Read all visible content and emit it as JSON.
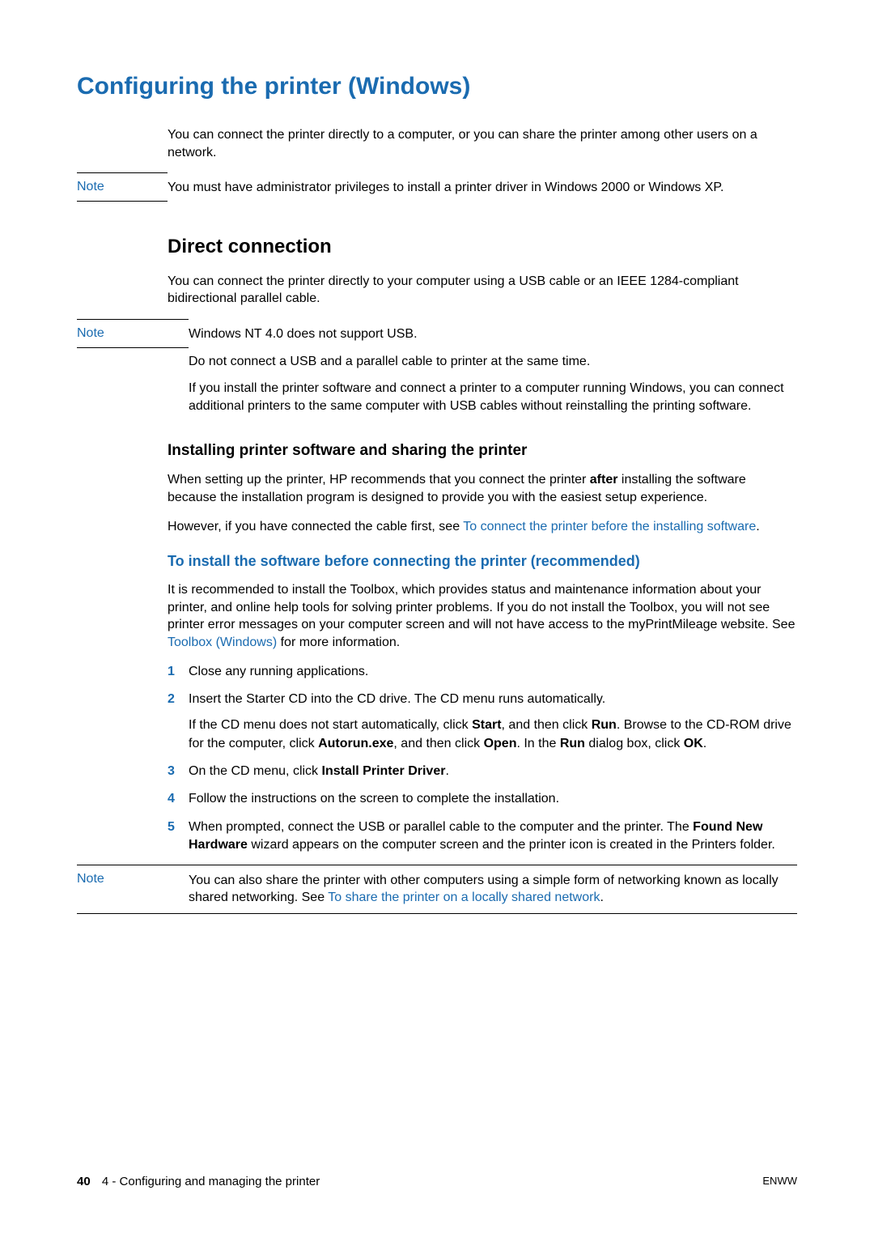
{
  "colors": {
    "accent": "#1a6bb0",
    "text": "#000000",
    "background": "#ffffff"
  },
  "typography": {
    "body_fontsize": 16,
    "h1_fontsize": 30,
    "h2_fontsize": 24,
    "h3_fontsize": 19,
    "h4_fontsize": 18
  },
  "page": {
    "h1": "Configuring the printer (Windows)",
    "intro": "You can connect the printer directly to a computer, or you can share the printer among other users on a network.",
    "note1_label": "Note",
    "note1_body": "You must have administrator privileges to install a printer driver in Windows 2000 or Windows XP.",
    "h2": "Direct connection",
    "direct_p1": "You can connect the printer directly to your computer using a USB cable or an IEEE 1284-compliant bidirectional parallel cable.",
    "note2_label": "Note",
    "note2_p1": "Windows NT 4.0 does not support USB.",
    "note2_p2": "Do not connect a USB and a parallel cable to printer at the same time.",
    "note2_p3": "If you install the printer software and connect a printer to a computer running Windows, you can connect additional printers to the same computer with USB cables without reinstalling the printing software.",
    "h3": "Installing printer software and sharing the printer",
    "install_p1_pre": "When setting up the printer, HP recommends that you connect the printer ",
    "install_p1_bold": "after",
    "install_p1_post": " installing the software because the installation program is designed to provide you with the easiest setup experience.",
    "install_p2_pre": "However, if you have connected the cable first, see ",
    "install_p2_link": "To connect the printer before the installing software",
    "install_p2_post": ".",
    "h4": "To install the software before connecting the printer (recommended)",
    "rec_p1_pre": "It is recommended to install the Toolbox, which provides status and maintenance information about your printer, and online help tools for solving printer problems. If you do not install the Toolbox, you will not see printer error messages on your computer screen and will not have access to the myPrintMileage website. See ",
    "rec_p1_link": "Toolbox (Windows)",
    "rec_p1_post": " for more information.",
    "steps": [
      {
        "num": "1",
        "paras": [
          {
            "runs": [
              {
                "t": "Close any running applications."
              }
            ]
          }
        ]
      },
      {
        "num": "2",
        "paras": [
          {
            "runs": [
              {
                "t": "Insert the Starter CD into the CD drive. The CD menu runs automatically."
              }
            ]
          },
          {
            "runs": [
              {
                "t": "If the CD menu does not start automatically, click "
              },
              {
                "t": "Start",
                "b": true
              },
              {
                "t": ", and then click "
              },
              {
                "t": "Run",
                "b": true
              },
              {
                "t": ". Browse to the CD-ROM drive for the computer, click "
              },
              {
                "t": "Autorun.exe",
                "b": true
              },
              {
                "t": ", and then click "
              },
              {
                "t": "Open",
                "b": true
              },
              {
                "t": ". In the "
              },
              {
                "t": "Run",
                "b": true
              },
              {
                "t": " dialog box, click "
              },
              {
                "t": "OK",
                "b": true
              },
              {
                "t": "."
              }
            ]
          }
        ]
      },
      {
        "num": "3",
        "paras": [
          {
            "runs": [
              {
                "t": "On the CD menu, click "
              },
              {
                "t": "Install Printer Driver",
                "b": true
              },
              {
                "t": "."
              }
            ]
          }
        ]
      },
      {
        "num": "4",
        "paras": [
          {
            "runs": [
              {
                "t": "Follow the instructions on the screen to complete the installation."
              }
            ]
          }
        ]
      },
      {
        "num": "5",
        "paras": [
          {
            "runs": [
              {
                "t": "When prompted, connect the USB or parallel cable to the computer and the printer. The "
              },
              {
                "t": "Found New Hardware",
                "b": true
              },
              {
                "t": " wizard appears on the computer screen and the printer icon is created in the Printers folder."
              }
            ]
          }
        ]
      }
    ],
    "note3_label": "Note",
    "note3_pre": "You can also share the printer with other computers using a simple form of networking known as locally shared networking. See ",
    "note3_link": "To share the printer on a locally shared network",
    "note3_post": "."
  },
  "footer": {
    "pagenum": "40",
    "section": "4 - Configuring and managing the printer",
    "right": "ENWW"
  }
}
